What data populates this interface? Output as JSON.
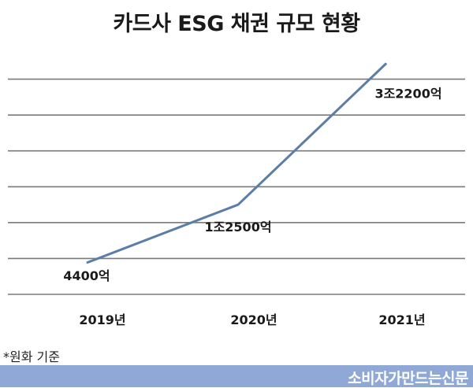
{
  "chart_data": {
    "type": "line",
    "title": "카드사 ESG 채권 규모 현황",
    "categories": [
      "2019년",
      "2020년",
      "2021년"
    ],
    "series": [
      {
        "values": [
          4400,
          12500,
          32200
        ]
      }
    ],
    "data_labels": [
      "4400억",
      "1조2500억",
      "3조2200억"
    ],
    "xlabel": "",
    "ylabel": "",
    "ylim": [
      0,
      35000
    ],
    "grid": true,
    "legend": "none",
    "line_color": "#5b7ea6",
    "grid_color": "#7a7a7a"
  },
  "footnote": "*원화 기준",
  "source": "소비자가만드는신문",
  "colors": {
    "source_bar": "#8fa8d6"
  }
}
